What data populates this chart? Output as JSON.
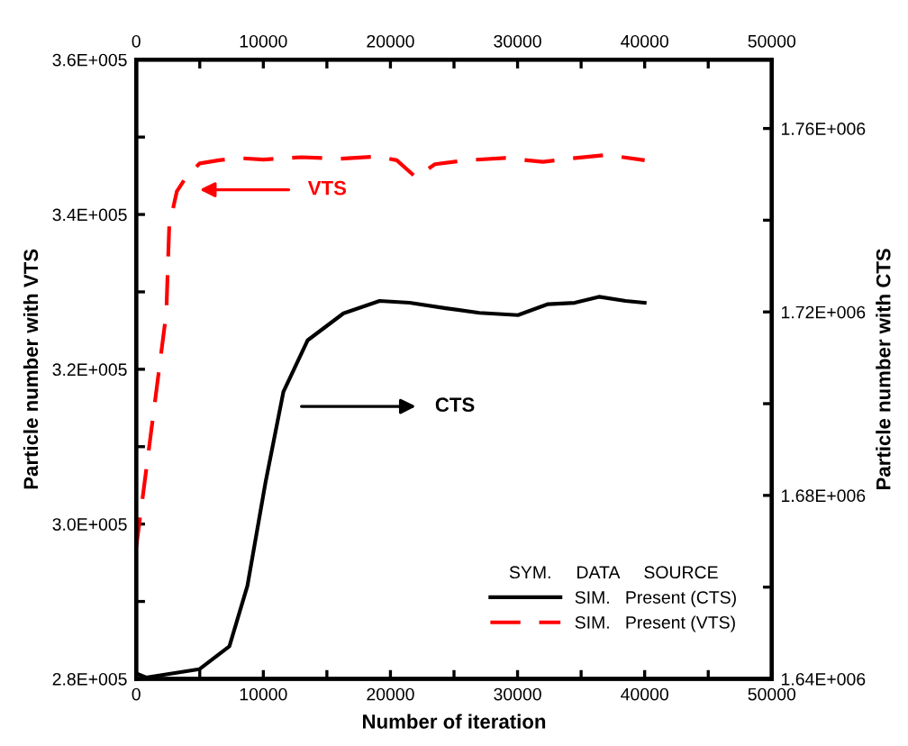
{
  "chart_data": {
    "type": "line",
    "xlabel": "Number of iteration",
    "ylabel": "Particle number with VTS",
    "y2label": "Particle number with CTS",
    "x2label": null,
    "xlim": [
      0,
      50000
    ],
    "xticks": [
      0,
      {
        "value": 5000,
        "label": null
      },
      10000,
      {
        "value": 15000,
        "label": null
      },
      20000,
      {
        "value": 25000,
        "label": null
      },
      30000,
      {
        "value": 35000,
        "label": null
      },
      40000,
      {
        "value": 45000,
        "label": null
      },
      50000
    ],
    "x2lim": [
      0,
      50000
    ],
    "x2ticks": [
      0,
      {
        "value": 5000,
        "label": null
      },
      10000,
      {
        "value": 15000,
        "label": null
      },
      20000,
      {
        "value": 25000,
        "label": null
      },
      30000,
      {
        "value": 35000,
        "label": null
      },
      40000,
      {
        "value": 45000,
        "label": null
      },
      50000
    ],
    "ylim": [
      280000,
      360000
    ],
    "yticks": [
      {
        "value": 280000,
        "label": "2.8E+005"
      },
      {
        "value": 290000,
        "label": null
      },
      {
        "value": 300000,
        "label": "3.0E+005"
      },
      {
        "value": 310000,
        "label": null
      },
      {
        "value": 320000,
        "label": "3.2E+005"
      },
      {
        "value": 330000,
        "label": null
      },
      {
        "value": 340000,
        "label": "3.4E+005"
      },
      {
        "value": 350000,
        "label": null
      },
      {
        "value": 360000,
        "label": "3.6E+005"
      }
    ],
    "y2lim": [
      1640000,
      1775000
    ],
    "y2ticks": [
      {
        "value": 1640000,
        "label": "1.64E+006"
      },
      {
        "value": 1660000,
        "label": null
      },
      {
        "value": 1680000,
        "label": "1.68E+006"
      },
      {
        "value": 1700000,
        "label": null
      },
      {
        "value": 1720000,
        "label": "1.72E+006"
      },
      {
        "value": 1740000,
        "label": null
      },
      {
        "value": 1760000,
        "label": "1.76E+006"
      }
    ],
    "legend": "bottom right",
    "legend_title": "SYM.     DATA     SOURCE",
    "grid": false,
    "series": [
      {
        "name": "SIM.   Present (CTS)",
        "color": "#000000",
        "axis": "y2",
        "line_style": "solid",
        "x": [
          0,
          780,
          4960,
          7330,
          8750,
          10170,
          11580,
          13480,
          16310,
          19150,
          21500,
          24350,
          27000,
          30030,
          32400,
          34500,
          36400,
          38500,
          40000
        ],
        "values": [
          1641200,
          1640300,
          1642100,
          1647100,
          1660300,
          1682800,
          1702600,
          1713800,
          1719700,
          1722400,
          1722000,
          1720800,
          1719800,
          1719300,
          1721700,
          1722000,
          1723300,
          1722400,
          1722000
        ]
      },
      {
        "name": "SIM.   Present (VTS)",
        "color": "#ff0000",
        "axis": "y",
        "line_style": "dashed",
        "x": [
          0,
          1180,
          2370,
          2600,
          3200,
          4000,
          5000,
          6500,
          8000,
          10000,
          13000,
          16000,
          19000,
          20500,
          22000,
          23500,
          26000,
          29000,
          32000,
          34000,
          37000,
          40000
        ],
        "values": [
          297000,
          312000,
          327300,
          338600,
          343000,
          345000,
          346600,
          347000,
          347300,
          347100,
          347400,
          347200,
          347500,
          347000,
          344800,
          346500,
          347000,
          347300,
          346800,
          347200,
          347700,
          347000
        ]
      }
    ],
    "annotations": [
      "VTS",
      "CTS"
    ]
  }
}
